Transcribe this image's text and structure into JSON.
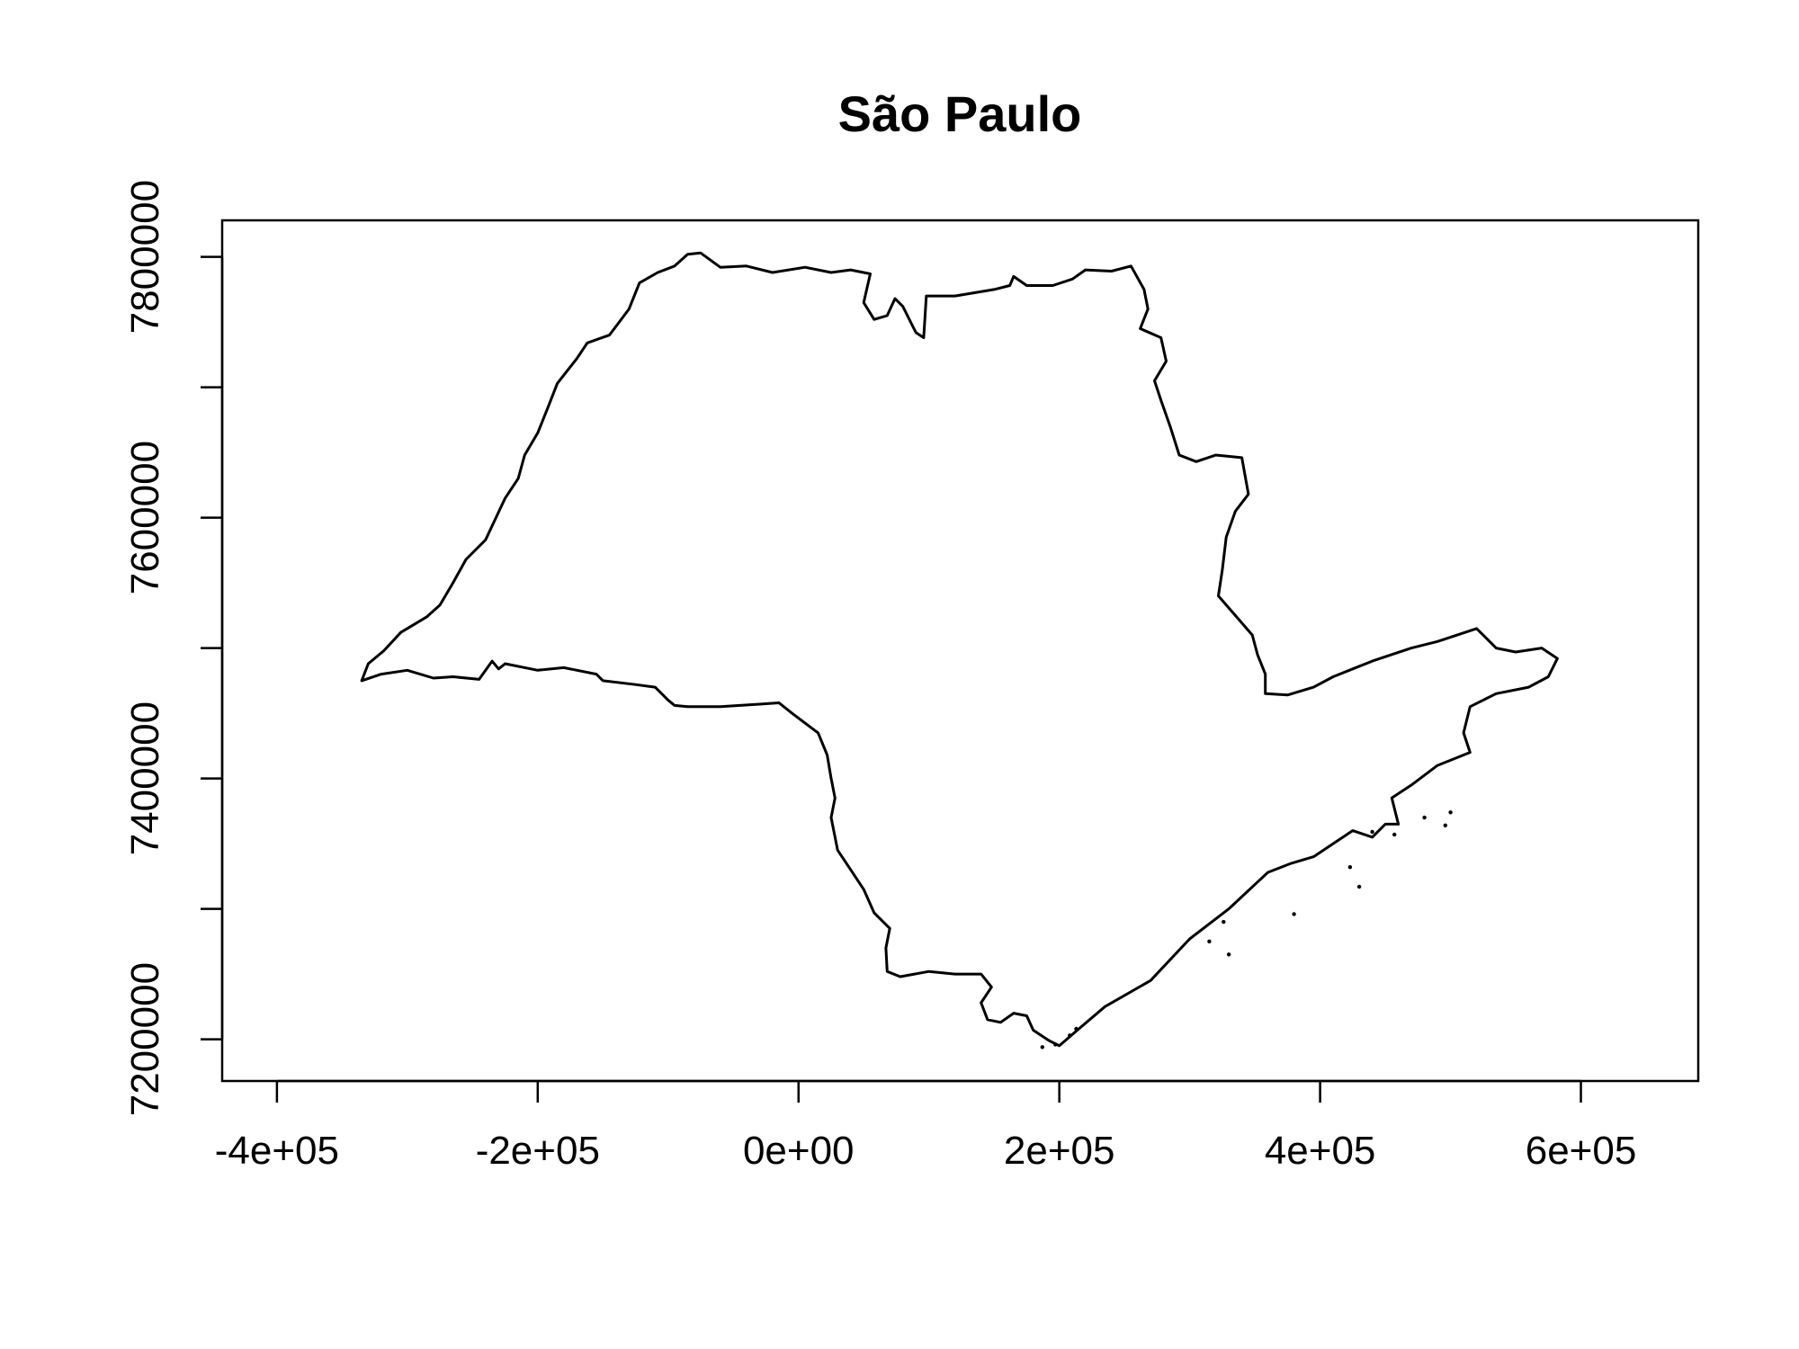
{
  "title": "São Paulo",
  "xaxis": {
    "ticks": [
      {
        "value": -400000,
        "label": "-4e+05"
      },
      {
        "value": -200000,
        "label": "-2e+05"
      },
      {
        "value": 0,
        "label": "0e+00"
      },
      {
        "value": 200000,
        "label": "2e+05"
      },
      {
        "value": 400000,
        "label": "4e+05"
      },
      {
        "value": 600000,
        "label": "6e+05"
      }
    ]
  },
  "yaxis": {
    "ticks": [
      {
        "value": 7200000,
        "label": "7200000"
      },
      {
        "value": 7300000,
        "label": ""
      },
      {
        "value": 7400000,
        "label": "7400000"
      },
      {
        "value": 7500000,
        "label": ""
      },
      {
        "value": 7600000,
        "label": "7600000"
      },
      {
        "value": 7700000,
        "label": ""
      },
      {
        "value": 7800000,
        "label": "7800000"
      }
    ]
  },
  "map_data": {
    "type": "polygon",
    "region": "São Paulo",
    "xlim": [
      -442000,
      690000
    ],
    "ylim": [
      7168000,
      7828000
    ],
    "outline": [
      [
        -335000,
        7475000
      ],
      [
        -330000,
        7488000
      ],
      [
        -318000,
        7498000
      ],
      [
        -305000,
        7512000
      ],
      [
        -285000,
        7524000
      ],
      [
        -275000,
        7533000
      ],
      [
        -265000,
        7550000
      ],
      [
        -255000,
        7568000
      ],
      [
        -240000,
        7583000
      ],
      [
        -232000,
        7600000
      ],
      [
        -225000,
        7615000
      ],
      [
        -215000,
        7630000
      ],
      [
        -210000,
        7648000
      ],
      [
        -200000,
        7665000
      ],
      [
        -192000,
        7685000
      ],
      [
        -185000,
        7703000
      ],
      [
        -170000,
        7722000
      ],
      [
        -162000,
        7734000
      ],
      [
        -145000,
        7740000
      ],
      [
        -130000,
        7760000
      ],
      [
        -122000,
        7780000
      ],
      [
        -108000,
        7788000
      ],
      [
        -95000,
        7793000
      ],
      [
        -85000,
        7802000
      ],
      [
        -75000,
        7803000
      ],
      [
        -60000,
        7792000
      ],
      [
        -40000,
        7793000
      ],
      [
        -20000,
        7788000
      ],
      [
        5000,
        7792000
      ],
      [
        25000,
        7788000
      ],
      [
        40000,
        7790000
      ],
      [
        55000,
        7787000
      ],
      [
        50000,
        7765000
      ],
      [
        58000,
        7752000
      ],
      [
        68000,
        7755000
      ],
      [
        74000,
        7768000
      ],
      [
        80000,
        7762000
      ],
      [
        90000,
        7742000
      ],
      [
        96000,
        7738000
      ],
      [
        98000,
        7770000
      ],
      [
        120000,
        7770000
      ],
      [
        150000,
        7775000
      ],
      [
        162000,
        7778000
      ],
      [
        165000,
        7785000
      ],
      [
        175000,
        7778000
      ],
      [
        195000,
        7778000
      ],
      [
        210000,
        7783000
      ],
      [
        220000,
        7790000
      ],
      [
        240000,
        7789000
      ],
      [
        255000,
        7793000
      ],
      [
        265000,
        7775000
      ],
      [
        268000,
        7760000
      ],
      [
        262000,
        7745000
      ],
      [
        278000,
        7738000
      ],
      [
        282000,
        7720000
      ],
      [
        273000,
        7705000
      ],
      [
        278000,
        7690000
      ],
      [
        285000,
        7670000
      ],
      [
        292000,
        7648000
      ],
      [
        305000,
        7643000
      ],
      [
        320000,
        7648000
      ],
      [
        340000,
        7646000
      ],
      [
        345000,
        7618000
      ],
      [
        335000,
        7605000
      ],
      [
        328000,
        7585000
      ],
      [
        325000,
        7560000
      ],
      [
        322000,
        7540000
      ],
      [
        335000,
        7525000
      ],
      [
        348000,
        7510000
      ],
      [
        352000,
        7495000
      ],
      [
        358000,
        7480000
      ],
      [
        358000,
        7465000
      ],
      [
        375000,
        7464000
      ],
      [
        395000,
        7470000
      ],
      [
        410000,
        7478000
      ],
      [
        425000,
        7484000
      ],
      [
        440000,
        7490000
      ],
      [
        470000,
        7500000
      ],
      [
        490000,
        7505000
      ],
      [
        520000,
        7515000
      ],
      [
        535000,
        7500000
      ],
      [
        550000,
        7497000
      ],
      [
        570000,
        7500000
      ],
      [
        582000,
        7492000
      ],
      [
        575000,
        7478000
      ],
      [
        560000,
        7470000
      ],
      [
        535000,
        7465000
      ],
      [
        515000,
        7455000
      ],
      [
        510000,
        7435000
      ],
      [
        515000,
        7420000
      ],
      [
        490000,
        7410000
      ],
      [
        470000,
        7395000
      ],
      [
        455000,
        7385000
      ],
      [
        460000,
        7365000
      ],
      [
        450000,
        7365000
      ],
      [
        440000,
        7355000
      ],
      [
        425000,
        7360000
      ],
      [
        410000,
        7350000
      ],
      [
        395000,
        7340000
      ],
      [
        378000,
        7335000
      ],
      [
        360000,
        7328000
      ],
      [
        330000,
        7300000
      ],
      [
        300000,
        7277000
      ],
      [
        270000,
        7245000
      ],
      [
        235000,
        7225000
      ],
      [
        215000,
        7208000
      ],
      [
        200000,
        7195000
      ],
      [
        192000,
        7199000
      ],
      [
        180000,
        7207000
      ],
      [
        175000,
        7218000
      ],
      [
        165000,
        7220000
      ],
      [
        155000,
        7213000
      ],
      [
        145000,
        7215000
      ],
      [
        140000,
        7228000
      ],
      [
        148000,
        7240000
      ],
      [
        140000,
        7250000
      ],
      [
        120000,
        7250000
      ],
      [
        100000,
        7252000
      ],
      [
        78000,
        7248000
      ],
      [
        68000,
        7252000
      ],
      [
        67000,
        7270000
      ],
      [
        70000,
        7285000
      ],
      [
        58000,
        7297000
      ],
      [
        50000,
        7315000
      ],
      [
        40000,
        7330000
      ],
      [
        30000,
        7345000
      ],
      [
        25000,
        7370000
      ],
      [
        28000,
        7385000
      ],
      [
        25000,
        7400000
      ],
      [
        22000,
        7418000
      ],
      [
        15000,
        7435000
      ],
      [
        -5000,
        7450000
      ],
      [
        -15000,
        7458000
      ],
      [
        -30000,
        7457000
      ],
      [
        -60000,
        7455000
      ],
      [
        -85000,
        7455000
      ],
      [
        -95000,
        7456000
      ],
      [
        -100000,
        7460000
      ],
      [
        -110000,
        7470000
      ],
      [
        -125000,
        7472000
      ],
      [
        -150000,
        7475000
      ],
      [
        -155000,
        7480000
      ],
      [
        -180000,
        7485000
      ],
      [
        -200000,
        7483000
      ],
      [
        -225000,
        7488000
      ],
      [
        -230000,
        7484000
      ],
      [
        -235000,
        7490000
      ],
      [
        -245000,
        7476000
      ],
      [
        -265000,
        7478000
      ],
      [
        -280000,
        7477000
      ],
      [
        -300000,
        7483000
      ],
      [
        -320000,
        7480000
      ],
      [
        -335000,
        7475000
      ]
    ],
    "islets": [
      [
        187000,
        7194000
      ],
      [
        197000,
        7196000
      ],
      [
        213000,
        7208000
      ],
      [
        208000,
        7203000
      ],
      [
        315000,
        7275000
      ],
      [
        326000,
        7290000
      ],
      [
        330000,
        7265000
      ],
      [
        380000,
        7296000
      ],
      [
        423000,
        7332000
      ],
      [
        430000,
        7317000
      ],
      [
        440000,
        7359000
      ],
      [
        457000,
        7357000
      ],
      [
        480000,
        7370000
      ],
      [
        496000,
        7364000
      ],
      [
        500000,
        7374000
      ]
    ]
  }
}
